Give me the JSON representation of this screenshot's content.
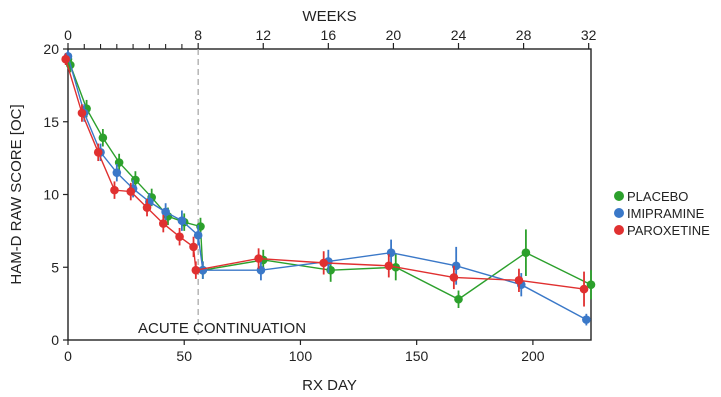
{
  "chart_data": {
    "type": "line",
    "xlabel": "RX DAY",
    "ylabel": "HAM-D RAW SCORE [OC]",
    "top_axis_label": "WEEKS",
    "xlim": [
      0,
      225
    ],
    "ylim": [
      0,
      20
    ],
    "x_ticks": [
      0,
      50,
      100,
      150,
      200
    ],
    "y_ticks": [
      0,
      5,
      10,
      15,
      20
    ],
    "top_ticks": [
      {
        "label": "0",
        "day": 0
      },
      {
        "label": "8",
        "day": 56
      },
      {
        "label": "12",
        "day": 84
      },
      {
        "label": "16",
        "day": 112
      },
      {
        "label": "20",
        "day": 140
      },
      {
        "label": "24",
        "day": 168
      },
      {
        "label": "28",
        "day": 196
      },
      {
        "label": "32",
        "day": 224
      }
    ],
    "top_minor_days": [
      7,
      14,
      21,
      28,
      35,
      42,
      49
    ],
    "divider_day": 56,
    "phase_annotation": "ACUTE CONTINUATION",
    "legend_position": "right",
    "grid": false,
    "series": [
      {
        "name": "PLACEBO",
        "color": "#2ca02c",
        "points": [
          {
            "x": 0,
            "y": 19.3,
            "err": 0.4
          },
          {
            "x": 1,
            "y": 18.9,
            "err": 0.5
          },
          {
            "x": 8,
            "y": 15.9,
            "err": 0.6
          },
          {
            "x": 15,
            "y": 13.9,
            "err": 0.6
          },
          {
            "x": 22,
            "y": 12.2,
            "err": 0.6
          },
          {
            "x": 29,
            "y": 11.0,
            "err": 0.6
          },
          {
            "x": 36,
            "y": 9.8,
            "err": 0.6
          },
          {
            "x": 43,
            "y": 8.5,
            "err": 0.6
          },
          {
            "x": 50,
            "y": 8.1,
            "err": 0.6
          },
          {
            "x": 57,
            "y": 7.8,
            "err": 0.6
          },
          {
            "x": 58,
            "y": 4.8,
            "err": 0.6
          },
          {
            "x": 84,
            "y": 5.5,
            "err": 0.7
          },
          {
            "x": 113,
            "y": 4.8,
            "err": 0.8
          },
          {
            "x": 141,
            "y": 5.0,
            "err": 0.9
          },
          {
            "x": 168,
            "y": 2.8,
            "err": 0.6
          },
          {
            "x": 197,
            "y": 6.0,
            "err": 1.6
          },
          {
            "x": 225,
            "y": 3.8,
            "err": 1.0
          }
        ]
      },
      {
        "name": "IMIPRAMINE",
        "color": "#3a78c8",
        "points": [
          {
            "x": 0,
            "y": 19.5,
            "err": 0.4
          },
          {
            "x": 7,
            "y": 15.6,
            "err": 0.6
          },
          {
            "x": 14,
            "y": 12.9,
            "err": 0.6
          },
          {
            "x": 21,
            "y": 11.5,
            "err": 0.6
          },
          {
            "x": 28,
            "y": 10.4,
            "err": 0.6
          },
          {
            "x": 35,
            "y": 9.5,
            "err": 0.6
          },
          {
            "x": 42,
            "y": 8.8,
            "err": 0.6
          },
          {
            "x": 49,
            "y": 8.2,
            "err": 0.7
          },
          {
            "x": 56,
            "y": 7.2,
            "err": 0.7
          },
          {
            "x": 58,
            "y": 4.8,
            "err": 0.6
          },
          {
            "x": 83,
            "y": 4.8,
            "err": 0.7
          },
          {
            "x": 112,
            "y": 5.4,
            "err": 0.8
          },
          {
            "x": 139,
            "y": 6.0,
            "err": 0.9
          },
          {
            "x": 167,
            "y": 5.1,
            "err": 1.3
          },
          {
            "x": 195,
            "y": 3.8,
            "err": 0.8
          },
          {
            "x": 223,
            "y": 1.4,
            "err": 0.4
          }
        ]
      },
      {
        "name": "PAROXETINE",
        "color": "#e03030",
        "points": [
          {
            "x": -1,
            "y": 19.3,
            "err": 0.4
          },
          {
            "x": 6,
            "y": 15.6,
            "err": 0.6
          },
          {
            "x": 13,
            "y": 12.9,
            "err": 0.6
          },
          {
            "x": 20,
            "y": 10.3,
            "err": 0.6
          },
          {
            "x": 27,
            "y": 10.2,
            "err": 0.6
          },
          {
            "x": 34,
            "y": 9.1,
            "err": 0.6
          },
          {
            "x": 41,
            "y": 8.0,
            "err": 0.6
          },
          {
            "x": 48,
            "y": 7.1,
            "err": 0.6
          },
          {
            "x": 54,
            "y": 6.4,
            "err": 0.7
          },
          {
            "x": 55,
            "y": 4.8,
            "err": 0.6
          },
          {
            "x": 82,
            "y": 5.6,
            "err": 0.7
          },
          {
            "x": 110,
            "y": 5.3,
            "err": 0.8
          },
          {
            "x": 138,
            "y": 5.1,
            "err": 0.8
          },
          {
            "x": 166,
            "y": 4.3,
            "err": 0.8
          },
          {
            "x": 194,
            "y": 4.1,
            "err": 0.8
          },
          {
            "x": 222,
            "y": 3.5,
            "err": 1.2
          }
        ]
      }
    ]
  }
}
